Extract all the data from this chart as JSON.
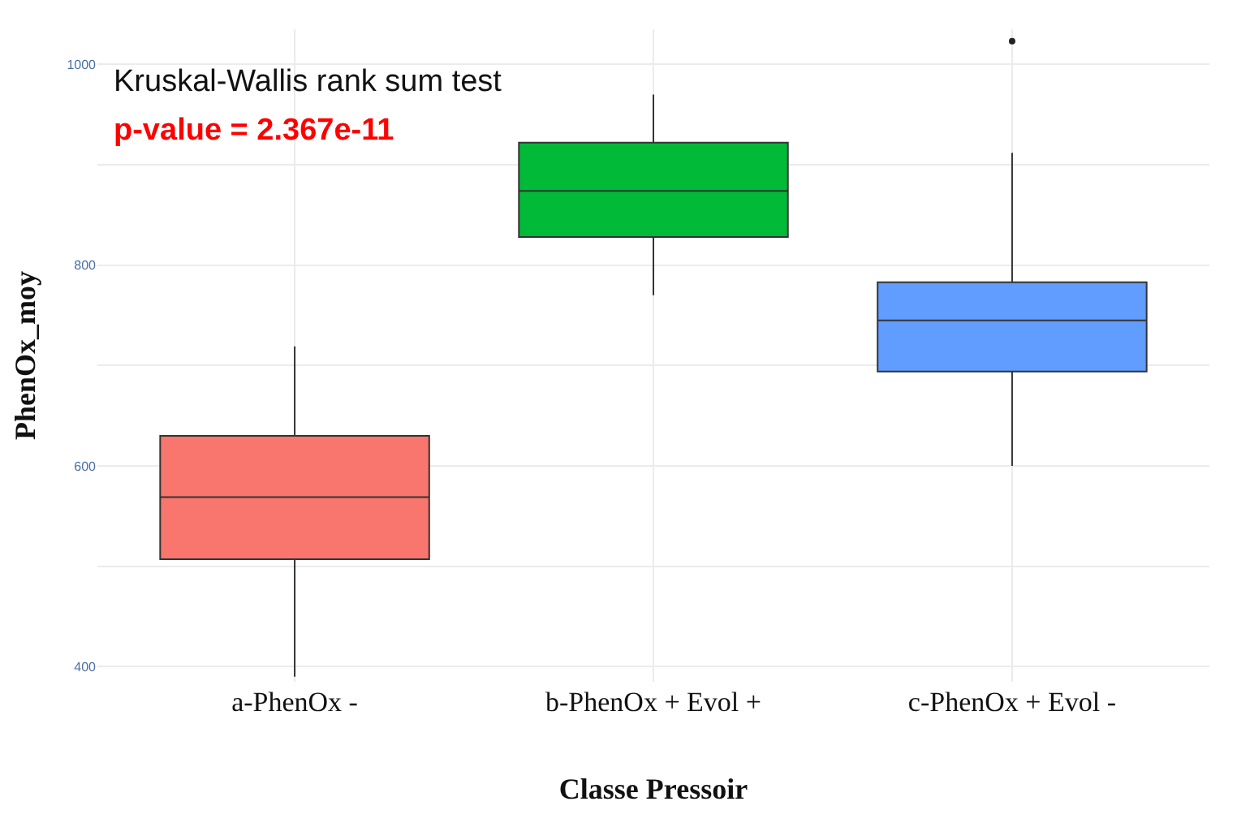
{
  "chart_data": {
    "type": "box",
    "xlabel": "Classe Pressoir",
    "ylabel": "PhenOx_moy",
    "categories": [
      "a-PhenOx -",
      "b-PhenOx + Evol +",
      "c-PhenOx + Evol -"
    ],
    "colors": [
      "#f8766d",
      "#00ba38",
      "#619cff"
    ],
    "boxes": [
      {
        "low": 390,
        "q1": 507,
        "median": 569,
        "q3": 630,
        "high": 719
      },
      {
        "low": 770,
        "q1": 828,
        "median": 874,
        "q3": 922,
        "high": 970
      },
      {
        "low": 600,
        "q1": 694,
        "median": 745,
        "q3": 783,
        "high": 912,
        "outliers": [
          1023
        ]
      }
    ],
    "ylim": [
      385,
      1035
    ],
    "yticks": [
      400,
      {
        "value": 500,
        "label": null
      },
      600,
      {
        "value": 700,
        "label": null
      },
      800,
      {
        "value": 900,
        "label": null
      },
      1000
    ],
    "grid": true,
    "annotations": [
      "Kruskal-Wallis rank sum test",
      "p-value = 2.367e-11"
    ]
  }
}
